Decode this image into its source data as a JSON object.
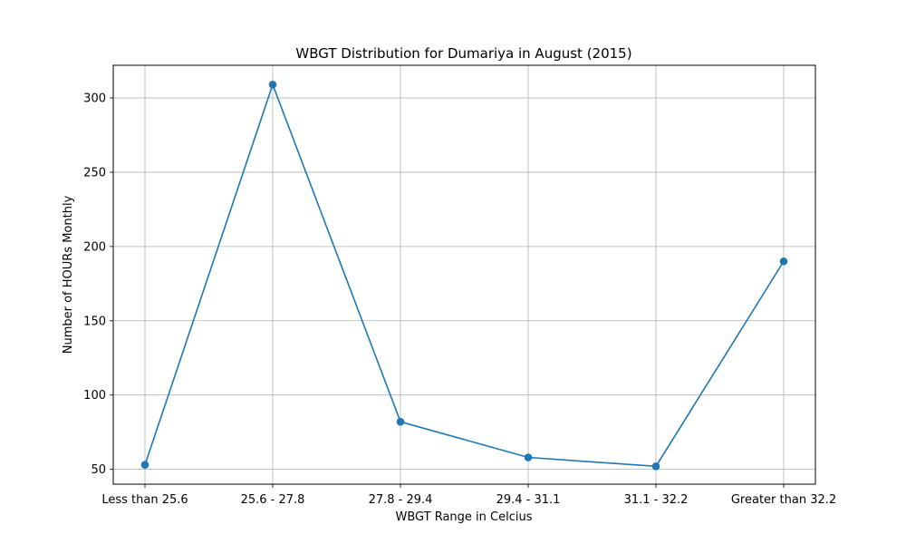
{
  "chart_data": {
    "type": "line",
    "title": "WBGT Distribution for Dumariya in August (2015)",
    "xlabel": "WBGT Range in Celcius",
    "ylabel": "Number of HOURs Monthly",
    "categories": [
      "Less than 25.6",
      "25.6 - 27.8",
      "27.8 - 29.4",
      "29.4 - 31.1",
      "31.1 - 32.2",
      "Greater than 32.2"
    ],
    "series": [
      {
        "values": [
          53,
          309,
          82,
          58,
          52,
          190
        ]
      }
    ],
    "ylim": [
      40,
      322
    ],
    "yticks": [
      50,
      100,
      150,
      200,
      250,
      300
    ],
    "grid": true,
    "marker": "circle",
    "line_color": "#1f77b4"
  }
}
